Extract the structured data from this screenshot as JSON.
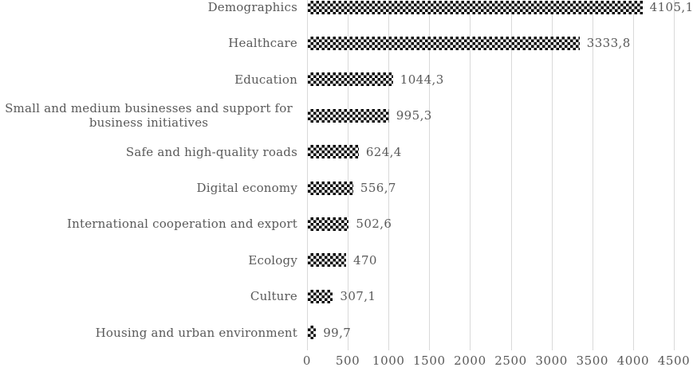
{
  "chart_data": {
    "type": "bar",
    "orientation": "horizontal",
    "title": "",
    "categories": [
      "Demographics",
      "Healthcare",
      "Education",
      "Small and medium businesses and support for business initiatives",
      "Safe and high-quality roads",
      "Digital economy",
      "International cooperation and export",
      "Ecology",
      "Culture",
      "Housing and urban environment"
    ],
    "values": [
      4105.1,
      3333.8,
      1044.3,
      995.3,
      624.4,
      556.7,
      502.6,
      470,
      307.1,
      99.7
    ],
    "value_labels": [
      "4105,1",
      "3333,8",
      "1044,3",
      "995,3",
      "624,4",
      "556,7",
      "502,6",
      "470",
      "307,1",
      "99,7"
    ],
    "xlabel": "",
    "ylabel": "",
    "xlim": [
      0,
      4500
    ],
    "x_ticks": [
      0,
      500,
      1000,
      1500,
      2000,
      2500,
      3000,
      3500,
      4000,
      4500
    ],
    "grid": "vertical gridlines at every 500, no axis line",
    "legend": "none",
    "bar_style": "black-and-white diagonal checkerboard pattern fill",
    "decimal_separator": "comma",
    "colors": {
      "text": "#595959",
      "gridline": "#d9d9d9",
      "bar_pattern": "#000000",
      "background": "#ffffff"
    }
  }
}
